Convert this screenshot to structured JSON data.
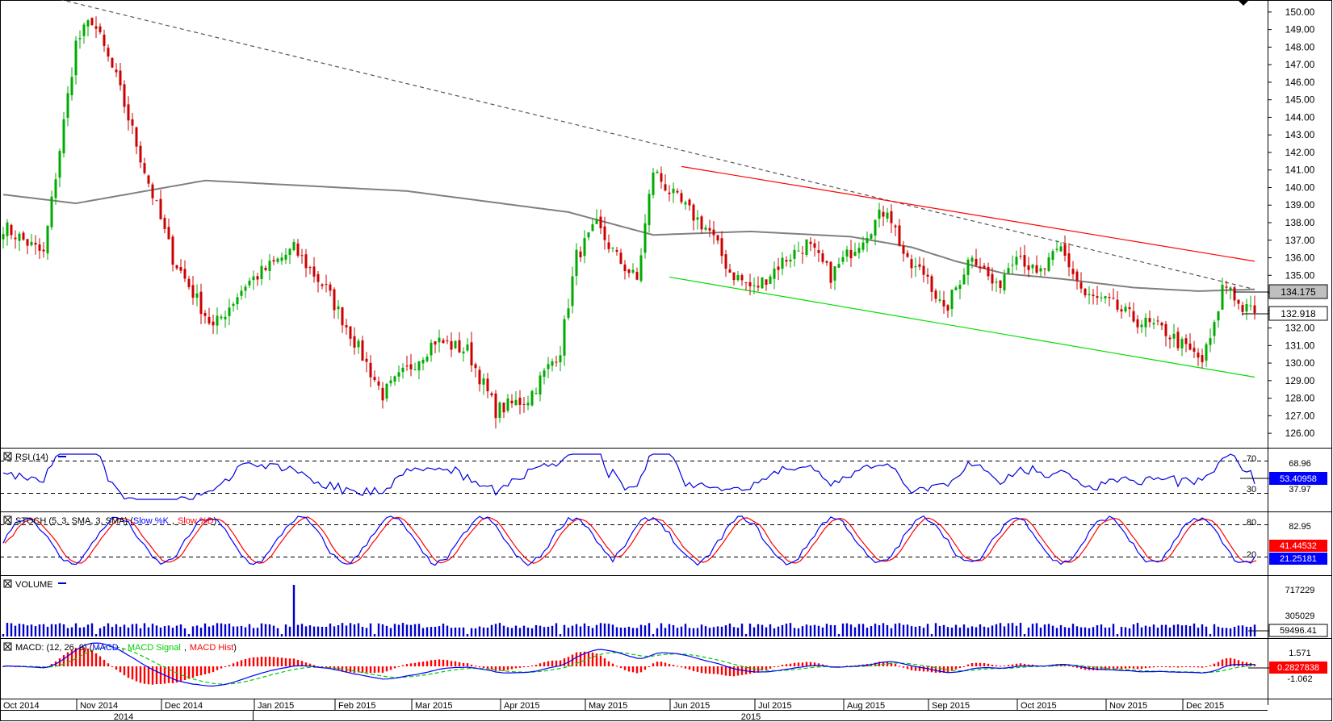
{
  "chart_data": {
    "type": "candlestick",
    "main": {
      "ylim": [
        125.5,
        150.5
      ],
      "y_ticks": [
        "150.00",
        "149.00",
        "148.00",
        "147.00",
        "146.00",
        "145.00",
        "144.00",
        "143.00",
        "142.00",
        "141.00",
        "140.00",
        "139.00",
        "138.00",
        "137.00",
        "136.00",
        "135.00",
        "134.00",
        "133.00",
        "132.00",
        "131.00",
        "130.00",
        "129.00",
        "128.00",
        "127.00",
        "126.00"
      ],
      "last_price": "132.918",
      "ma_value": "134.175",
      "candles_anchors": [
        [
          0,
          137.8
        ],
        [
          10,
          136.2
        ],
        [
          18,
          148.2
        ],
        [
          22,
          149.6
        ],
        [
          28,
          146.2
        ],
        [
          35,
          141.0
        ],
        [
          42,
          136.0
        ],
        [
          52,
          132.0
        ],
        [
          60,
          134.5
        ],
        [
          72,
          136.5
        ],
        [
          80,
          134.2
        ],
        [
          86,
          131.7
        ],
        [
          94,
          128.2
        ],
        [
          100,
          129.6
        ],
        [
          107,
          131.3
        ],
        [
          115,
          130.7
        ],
        [
          122,
          127.3
        ],
        [
          130,
          128.0
        ],
        [
          138,
          130.8
        ],
        [
          142,
          136.1
        ],
        [
          147,
          137.8
        ],
        [
          152,
          136.0
        ],
        [
          157,
          134.7
        ],
        [
          161,
          141.0
        ],
        [
          166,
          139.5
        ],
        [
          175,
          137.5
        ],
        [
          180,
          135.2
        ],
        [
          186,
          134.2
        ],
        [
          193,
          135.8
        ],
        [
          199,
          136.8
        ],
        [
          205,
          135.0
        ],
        [
          214,
          137.5
        ],
        [
          219,
          138.9
        ],
        [
          224,
          135.6
        ],
        [
          229,
          135.0
        ],
        [
          233,
          132.8
        ],
        [
          240,
          136.3
        ],
        [
          246,
          134.2
        ],
        [
          251,
          136.5
        ],
        [
          256,
          134.9
        ],
        [
          262,
          136.5
        ],
        [
          268,
          133.8
        ],
        [
          274,
          133.4
        ],
        [
          280,
          132.5
        ],
        [
          288,
          131.8
        ],
        [
          292,
          131.0
        ],
        [
          297,
          130.1
        ],
        [
          300,
          132.0
        ],
        [
          302,
          134.3
        ],
        [
          304,
          134.4
        ],
        [
          306,
          133.3
        ],
        [
          308,
          133.0
        ]
      ],
      "ma_anchors": [
        [
          0,
          139.6
        ],
        [
          18,
          139.1
        ],
        [
          50,
          140.4
        ],
        [
          100,
          139.8
        ],
        [
          140,
          138.6
        ],
        [
          161,
          137.3
        ],
        [
          185,
          137.5
        ],
        [
          210,
          137.2
        ],
        [
          225,
          136.6
        ],
        [
          236,
          135.8
        ],
        [
          248,
          135.1
        ],
        [
          262,
          134.8
        ],
        [
          280,
          134.3
        ],
        [
          296,
          134.1
        ],
        [
          310,
          134.2
        ]
      ],
      "trendlines": [
        {
          "style": "dashed",
          "color": "#555555",
          "p1": [
            0,
            151.5
          ],
          "p2": [
            310,
            134.2
          ]
        },
        {
          "style": "solid",
          "color": "#ff0000",
          "p1": [
            168,
            141.2
          ],
          "p2": [
            310,
            135.8
          ]
        },
        {
          "style": "solid",
          "color": "#00dd00",
          "p1": [
            165,
            134.9
          ],
          "p2": [
            310,
            129.2
          ]
        }
      ]
    },
    "rsi": {
      "label": "RSI (14)",
      "levels": [
        "70",
        "30"
      ],
      "ticks": [
        "68.96",
        "37.97"
      ],
      "value": "53.40958"
    },
    "stoch": {
      "label_prefix": "STOCH (5, 3, SMA, 3, SMA) (",
      "k_label": "Slow %K",
      "d_label": "Slow %D",
      "levels": [
        "80",
        "20"
      ],
      "ticks": [
        "82.95"
      ],
      "d_value": "41.44532",
      "k_value": "21.25181"
    },
    "volume": {
      "label": "VOLUME",
      "ticks": [
        "717229",
        "305029"
      ],
      "value": "59496.41"
    },
    "macd": {
      "label_prefix": "MACD: (12, 26, 9) (",
      "macd_label": "MACD",
      "signal_label": "MACD Signal",
      "hist_label": "MACD Hist",
      "ticks": [
        "1.571",
        "-1.062"
      ],
      "value": "0.2827838"
    },
    "x_axis": {
      "months": [
        "Oct 2014",
        "Nov 2014",
        "Dec 2014",
        "Jan 2015",
        "Feb 2015",
        "Mar 2015",
        "Apr 2015",
        "May 2015",
        "Jun 2015",
        "Jul 2015",
        "Aug 2015",
        "Sep 2015",
        "Oct 2015",
        "Nov 2015",
        "Dec 2015"
      ],
      "years": [
        "2014",
        "2015"
      ]
    }
  },
  "colors": {
    "up_candle": "#00aa00",
    "down_candle": "#cc0000",
    "ma_line": "#808080",
    "rsi_line": "#0000dd",
    "stoch_k": "#0000ff",
    "stoch_d": "#ff0000",
    "volume_bar": "#0000cc",
    "macd_line": "#0000ff",
    "signal_line": "#00cc00",
    "hist_bar": "#ff0000"
  }
}
